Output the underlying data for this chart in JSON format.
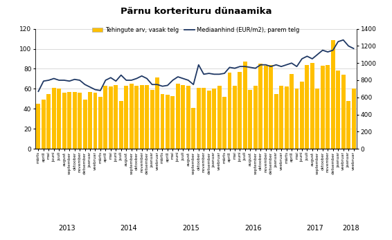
{
  "title": "Pärnu korterituru dünaamika",
  "bar_label": "Tehingute arv, vasak telg",
  "line_label": "Mediaanhind (EUR/m2), parem telg",
  "bar_color": "#FFC000",
  "line_color": "#1F3864",
  "background_color": "#FFFFFF",
  "ylim_left": [
    0,
    120
  ],
  "ylim_right": [
    0,
    1400
  ],
  "yticks_left": [
    0,
    20,
    40,
    60,
    80,
    100,
    120
  ],
  "yticks_right": [
    0,
    200,
    400,
    600,
    800,
    1000,
    1200,
    1400
  ],
  "months": [
    "märts",
    "aprill",
    "mai",
    "juuni",
    "juuli",
    "august",
    "september",
    "oktoober",
    "november",
    "detsember",
    "jaanuar",
    "veebruar",
    "märts",
    "aprill",
    "mai",
    "juuni",
    "juuli",
    "august",
    "september",
    "oktoober",
    "november",
    "detsember",
    "jaanuar",
    "veebruar",
    "märts",
    "aprill",
    "mai",
    "juuni",
    "juuli",
    "august",
    "september",
    "oktoober",
    "november",
    "detsember",
    "jaanuar",
    "veebruar",
    "märts",
    "aprill",
    "mai",
    "juuni",
    "juuli",
    "august",
    "september",
    "oktoober",
    "november",
    "detsember",
    "jaanuar",
    "veebruar",
    "märts",
    "aprill",
    "mai",
    "juuni",
    "juuli",
    "august",
    "september",
    "oktoober",
    "november",
    "detsember",
    "jaanuar",
    "veebruar",
    "jaanuar",
    "veebruar"
  ],
  "year_labels": [
    "2013",
    "2014",
    "2015",
    "2016",
    "2017",
    "2018"
  ],
  "year_centers": [
    5.5,
    17.5,
    29.5,
    41.5,
    53.5,
    60.5
  ],
  "bar_values": [
    45,
    49,
    55,
    61,
    60,
    56,
    57,
    57,
    56,
    49,
    57,
    56,
    52,
    63,
    62,
    64,
    48,
    63,
    65,
    63,
    64,
    64,
    59,
    71,
    55,
    54,
    53,
    65,
    64,
    63,
    41,
    61,
    61,
    58,
    60,
    63,
    52,
    76,
    63,
    77,
    87,
    59,
    63,
    85,
    83,
    84,
    55,
    63,
    62,
    75,
    60,
    67,
    84,
    86,
    60,
    83,
    84,
    109,
    78,
    74,
    48,
    60
  ],
  "line_values": [
    670,
    790,
    800,
    820,
    800,
    800,
    790,
    810,
    800,
    750,
    720,
    690,
    680,
    800,
    830,
    790,
    860,
    800,
    800,
    820,
    850,
    820,
    750,
    750,
    730,
    740,
    800,
    840,
    820,
    800,
    750,
    980,
    870,
    880,
    870,
    870,
    880,
    950,
    940,
    960,
    960,
    950,
    940,
    980,
    980,
    960,
    980,
    960,
    980,
    1000,
    960,
    1050,
    1080,
    1050,
    1100,
    1150,
    1130,
    1150,
    1250,
    1270,
    1200,
    1170
  ]
}
